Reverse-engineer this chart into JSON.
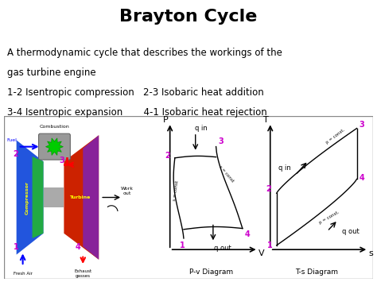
{
  "title": "Brayton Cycle",
  "title_fontsize": 16,
  "title_fontweight": "bold",
  "bg_color": "#ffffff",
  "text_color": "#000000",
  "magenta_color": "#cc00cc",
  "desc_line1": "A thermodynamic cycle that describes the workings of the",
  "desc_line2": "gas turbine engine",
  "cycle_line1": "1-2 Isentropic compression   2-3 Isobaric heat addition",
  "cycle_line2": "3-4 Isentropic expansion       4-1 Isobaric heat rejection",
  "border_color": "#888888",
  "pv_xlabel": "P-v Diagram",
  "ts_xlabel": "T-s Diagram",
  "text_fontsize": 8.5
}
